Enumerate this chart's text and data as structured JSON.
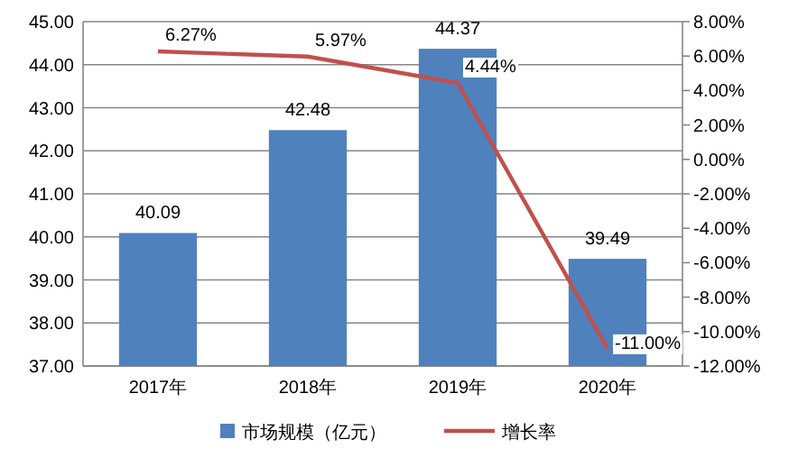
{
  "chart_data": {
    "type": "bar",
    "categories": [
      "2017年",
      "2018年",
      "2019年",
      "2020年"
    ],
    "series": [
      {
        "name": "市场规模（亿元）",
        "color": "#4f81bd",
        "values": [
          40.09,
          42.48,
          44.37,
          39.49
        ],
        "value_labels": [
          "40.09",
          "42.48",
          "44.37",
          "39.49"
        ]
      },
      {
        "name": "增长率",
        "type": "line",
        "axis": "y2",
        "color": "#c0504d",
        "values": [
          6.27,
          5.97,
          4.44,
          -11.0
        ],
        "value_labels": [
          "6.27%",
          "5.97%",
          "4.44%",
          "-11.00%"
        ]
      }
    ],
    "ylim": [
      37,
      45
    ],
    "yticks": [
      {
        "value": 37,
        "label": "37.00"
      },
      {
        "value": 38,
        "label": "38.00"
      },
      {
        "value": 39,
        "label": "39.00"
      },
      {
        "value": 40,
        "label": "40.00"
      },
      {
        "value": 41,
        "label": "41.00"
      },
      {
        "value": 42,
        "label": "42.00"
      },
      {
        "value": 43,
        "label": "43.00"
      },
      {
        "value": 44,
        "label": "44.00"
      },
      {
        "value": 45,
        "label": "45.00"
      }
    ],
    "y2lim": [
      -12,
      8
    ],
    "y2ticks": [
      {
        "value": -12,
        "label": "-12.00%"
      },
      {
        "value": -10,
        "label": "-10.00%"
      },
      {
        "value": -8,
        "label": "-8.00%"
      },
      {
        "value": -6,
        "label": "-6.00%"
      },
      {
        "value": -4,
        "label": "-4.00%"
      },
      {
        "value": -2,
        "label": "-2.00%"
      },
      {
        "value": 0,
        "label": "0.00%"
      },
      {
        "value": 2,
        "label": "2.00%"
      },
      {
        "value": 4,
        "label": "4.00%"
      },
      {
        "value": 6,
        "label": "6.00%"
      },
      {
        "value": 8,
        "label": "8.00%"
      }
    ],
    "grid": "y",
    "legend": "bottom",
    "marker": "none"
  }
}
